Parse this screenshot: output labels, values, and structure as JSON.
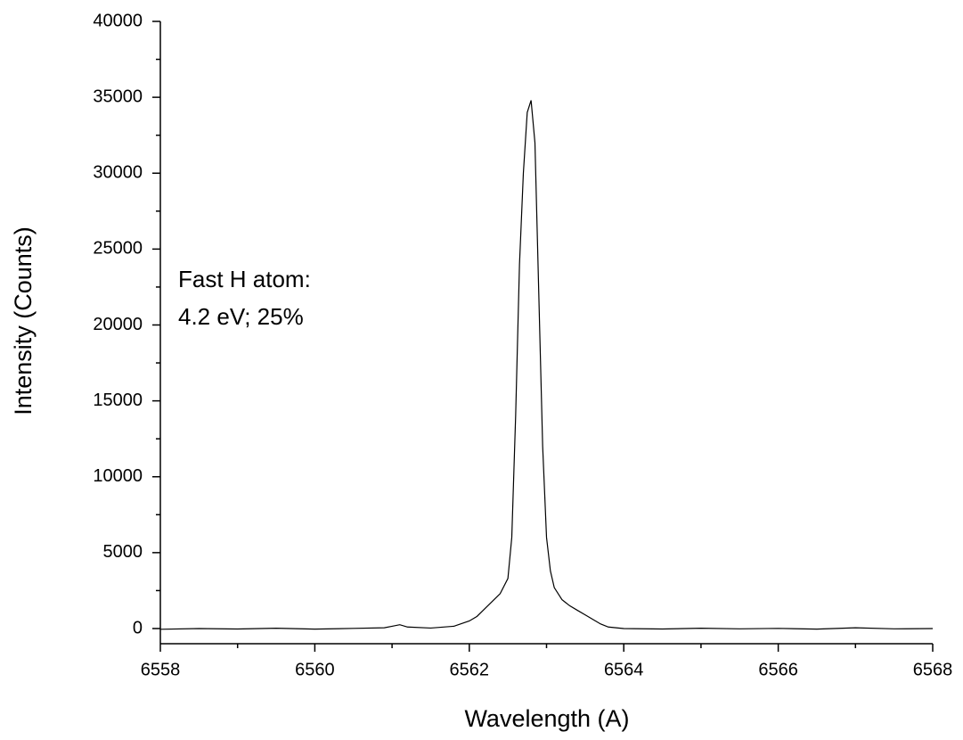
{
  "chart_data": {
    "type": "line",
    "xlabel": "Wavelength (A)",
    "ylabel": "Intensity (Counts)",
    "annotations": [
      "Fast H atom:",
      "4.2 eV; 25%"
    ],
    "x": [
      6558.0,
      6558.5,
      6559,
      6559.5,
      6560,
      6560.5,
      6560.9,
      6561.0,
      6561.1,
      6561.2,
      6561.5,
      6561.8,
      6562.0,
      6562.1,
      6562.2,
      6562.3,
      6562.4,
      6562.5,
      6562.55,
      6562.6,
      6562.65,
      6562.7,
      6562.75,
      6562.8,
      6562.85,
      6562.9,
      6562.95,
      6563.0,
      6563.05,
      6563.1,
      6563.2,
      6563.3,
      6563.4,
      6563.5,
      6563.6,
      6563.7,
      6563.8,
      6564.0,
      6564.5,
      6565,
      6565.5,
      6566,
      6566.5,
      6567,
      6567.5,
      6568
    ],
    "values": [
      -50,
      0,
      -30,
      20,
      -40,
      10,
      50,
      150,
      250,
      100,
      30,
      150,
      500,
      800,
      1300,
      1800,
      2300,
      3300,
      6000,
      14000,
      24000,
      30000,
      34000,
      34800,
      32000,
      22000,
      12000,
      6000,
      3800,
      2700,
      1900,
      1500,
      1200,
      900,
      600,
      300,
      100,
      0,
      -30,
      20,
      -20,
      10,
      -40,
      50,
      -20,
      0
    ],
    "color": "#000000",
    "xlim": [
      6558,
      6568
    ],
    "xticks": [
      6558,
      6560,
      6562,
      6564,
      6566,
      6568
    ],
    "xminorticks": [
      6559,
      6561,
      6563,
      6565,
      6567
    ],
    "ylim": [
      -1000,
      40000
    ],
    "yticks": [
      0,
      5000,
      10000,
      15000,
      20000,
      25000,
      30000,
      35000,
      40000
    ],
    "yminorticks": [
      2500,
      7500,
      12500,
      17500,
      22500,
      27500,
      32500,
      37500
    ],
    "grid": false
  }
}
